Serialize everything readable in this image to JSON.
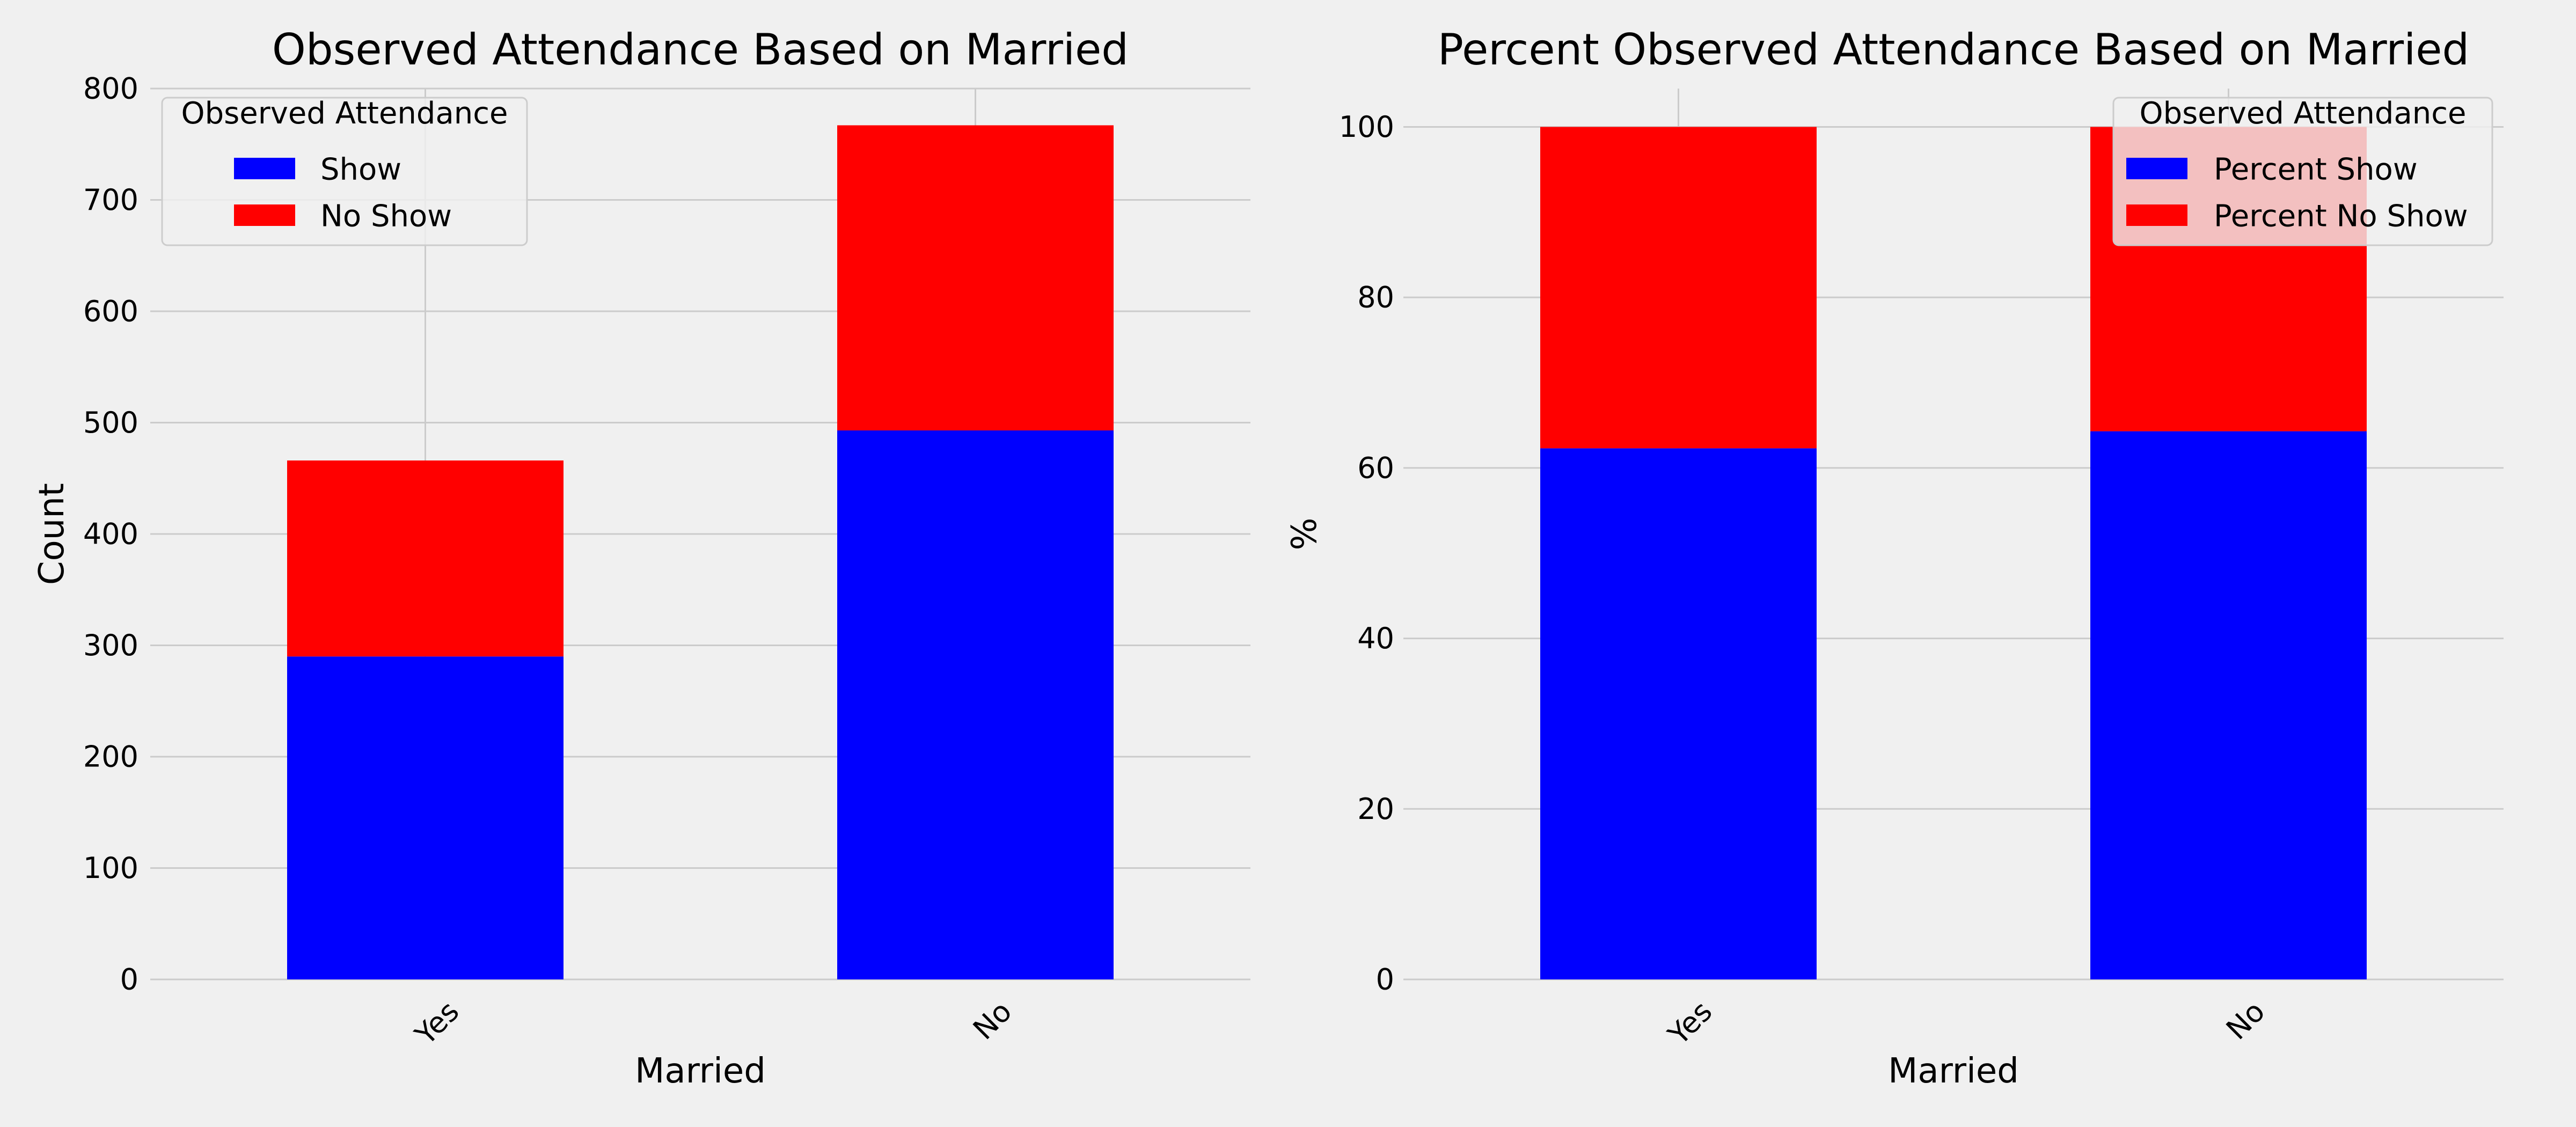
{
  "chart_data": [
    {
      "type": "bar",
      "stacked": true,
      "title": "Observed Attendance Based on Married",
      "xlabel": "Married",
      "ylabel": "Count",
      "categories": [
        "Yes",
        "No"
      ],
      "ylim": [
        0,
        800
      ],
      "yticks": [
        "0",
        "100",
        "200",
        "300",
        "400",
        "500",
        "600",
        "700",
        "800"
      ],
      "grid": true,
      "legend": {
        "title": "Observed Attendance",
        "placement": "top-left",
        "entries": [
          "Show",
          "No Show"
        ]
      },
      "series": [
        {
          "name": "Show",
          "color": "#0000ff",
          "values": [
            290,
            493
          ]
        },
        {
          "name": "No Show",
          "color": "#ff0000",
          "values": [
            176,
            274
          ]
        }
      ]
    },
    {
      "type": "bar",
      "stacked": true,
      "title": "Percent Observed Attendance Based on Married",
      "xlabel": "Married",
      "ylabel": "%",
      "categories": [
        "Yes",
        "No"
      ],
      "ylim": [
        0,
        104.5
      ],
      "yticks": [
        "0",
        "20",
        "40",
        "60",
        "80",
        "100"
      ],
      "grid": true,
      "legend": {
        "title": "Observed Attendance",
        "placement": "top-right",
        "entries": [
          "Percent Show",
          "Percent No Show"
        ]
      },
      "series": [
        {
          "name": "Percent Show",
          "color": "#0000ff",
          "values": [
            62.3,
            64.3
          ]
        },
        {
          "name": "Percent No Show",
          "color": "#ff0000",
          "values": [
            37.7,
            35.7
          ]
        }
      ]
    }
  ]
}
